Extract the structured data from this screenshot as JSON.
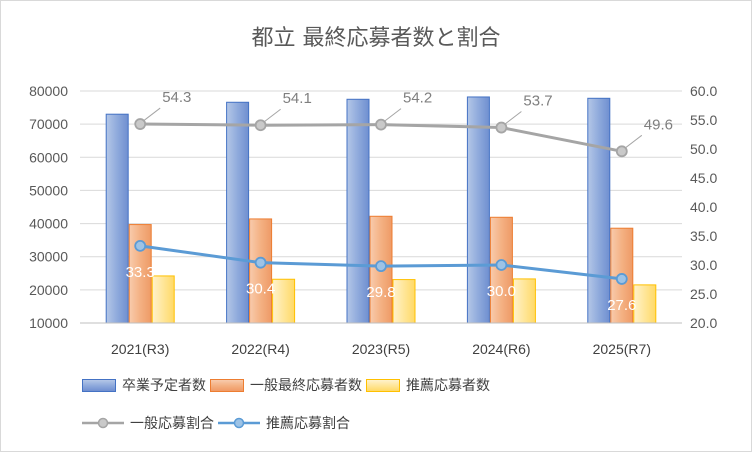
{
  "chart_title": "都立 最終応募者数と割合",
  "chart_data": {
    "type": "bar",
    "title": "都立 最終応募者数と割合",
    "categories": [
      "2021(R3)",
      "2022(R4)",
      "2023(R5)",
      "2024(R6)",
      "2025(R7)"
    ],
    "y_left": {
      "ylim": [
        10000,
        80000
      ],
      "ticks": [
        "80000",
        "70000",
        "60000",
        "50000",
        "40000",
        "30000",
        "20000",
        "10000"
      ]
    },
    "y_right": {
      "ylim": [
        20.0,
        60.0
      ],
      "ticks": [
        "60.0",
        "55.0",
        "50.0",
        "45.0",
        "40.0",
        "35.0",
        "30.0",
        "25.0",
        "20.0"
      ]
    },
    "grid": true,
    "legend_position": "bottom",
    "series": [
      {
        "name": "卒業予定者数",
        "kind": "bar",
        "axis": "left",
        "color": "#8faadc",
        "values": [
          73000,
          76600,
          77500,
          78200,
          77800
        ]
      },
      {
        "name": "一般最終応募者数",
        "kind": "bar",
        "axis": "left",
        "color": "#f4b183",
        "values": [
          39700,
          41400,
          42200,
          41900,
          38600
        ]
      },
      {
        "name": "推薦応募者数",
        "kind": "bar",
        "axis": "left",
        "color": "#ffe699",
        "values": [
          24200,
          23200,
          23100,
          23300,
          21500
        ]
      },
      {
        "name": "一般応募割合",
        "kind": "line",
        "axis": "right",
        "color": "#a5a5a5",
        "values": [
          54.3,
          54.1,
          54.2,
          53.7,
          49.6
        ],
        "labels": [
          "54.3",
          "54.1",
          "54.2",
          "53.7",
          "49.6"
        ]
      },
      {
        "name": "推薦応募割合",
        "kind": "line",
        "axis": "right",
        "color": "#5b9bd5",
        "values": [
          33.3,
          30.4,
          29.8,
          30.0,
          27.6
        ],
        "labels": [
          "33.3",
          "30.4",
          "29.8",
          "30.0",
          "27.6"
        ]
      }
    ]
  },
  "legend": {
    "row1": [
      "卒業予定者数",
      "一般最終応募者数",
      "推薦応募者数"
    ],
    "row2": [
      "一般応募割合",
      "推薦応募割合"
    ]
  },
  "colors": {
    "grid": "#d9d9d9",
    "axis_text": "#595959"
  }
}
